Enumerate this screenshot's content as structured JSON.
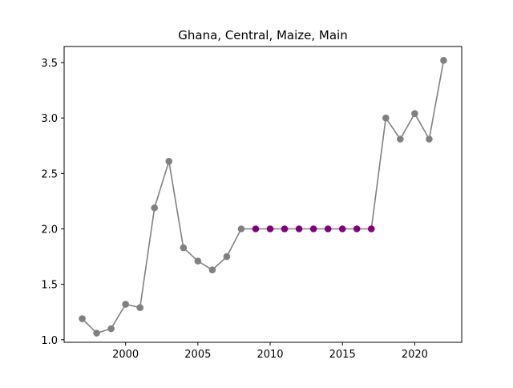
{
  "chart_data": {
    "type": "line",
    "title": "Ghana, Central, Maize, Main",
    "xlabel": "",
    "ylabel": "",
    "xlim": [
      1995.75,
      2023.25
    ],
    "ylim": [
      0.977,
      3.645
    ],
    "xticks": [
      2000,
      2005,
      2010,
      2015,
      2020
    ],
    "xtick_labels": [
      "2000",
      "2005",
      "2010",
      "2015",
      "2020"
    ],
    "yticks": [
      1.0,
      1.5,
      2.0,
      2.5,
      3.0,
      3.5
    ],
    "ytick_labels": [
      "1.0",
      "1.5",
      "2.0",
      "2.5",
      "3.0",
      "3.5"
    ],
    "grid": false,
    "series": [
      {
        "color": "#808080",
        "x": [
          1997,
          1998,
          1999,
          2000,
          2001,
          2002,
          2003,
          2004,
          2005,
          2006,
          2007,
          2008,
          2009,
          2010,
          2011,
          2012,
          2013,
          2014,
          2015,
          2016,
          2017,
          2018,
          2019,
          2020,
          2021,
          2022
        ],
        "y": [
          1.19,
          1.06,
          1.1,
          1.32,
          1.29,
          2.19,
          2.61,
          1.83,
          1.71,
          1.63,
          1.75,
          2.0,
          2.0,
          2.0,
          2.0,
          2.0,
          2.0,
          2.0,
          2.0,
          2.0,
          2.0,
          3.0,
          2.81,
          3.04,
          2.81,
          3.52
        ],
        "highlight_color": "#800080",
        "highlight_x": [
          2009,
          2010,
          2011,
          2012,
          2013,
          2014,
          2015,
          2016,
          2017
        ]
      }
    ]
  }
}
